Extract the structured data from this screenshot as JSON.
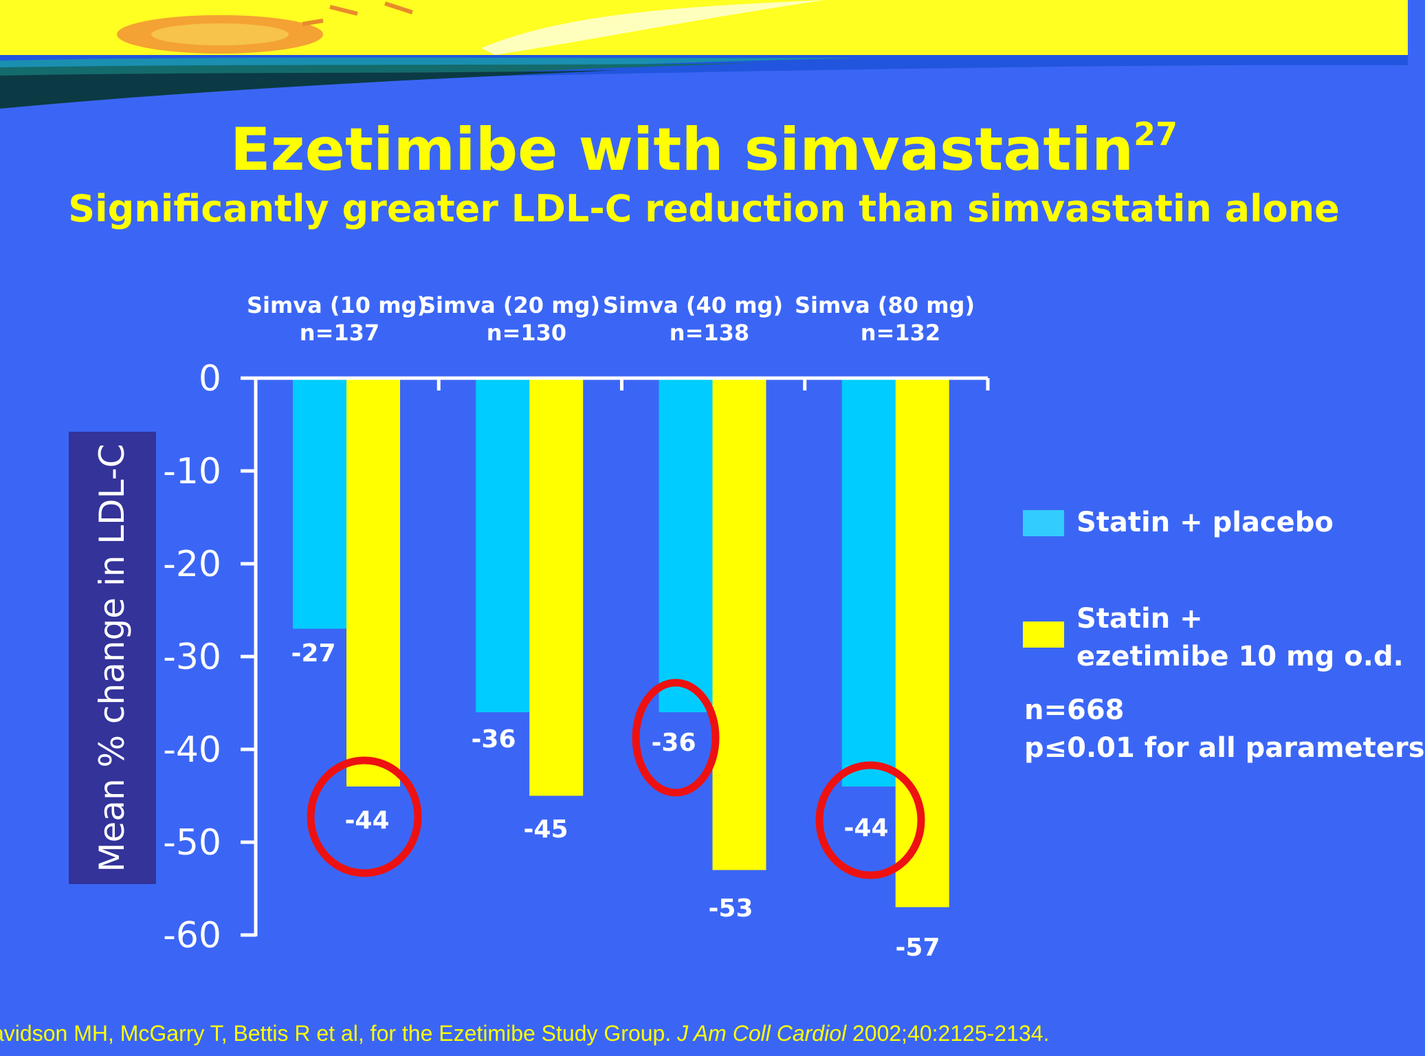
{
  "slide": {
    "title": "Ezetimibe with simvastatin",
    "title_superscript": "27",
    "subtitle": "Significantly greater LDL-C reduction than simvastatin alone",
    "citation_authors": "avidson MH, McGarry T, Bettis R et al, for the Ezetimibe Study Group.",
    "citation_journal": "J Am Coll Cardiol",
    "citation_details": "2002;40:2125-2134.",
    "note_n": "n=668",
    "note_p": "p≤0.01 for all parameters",
    "colors": {
      "background": "#3b66f5",
      "title": "#ffff00",
      "placebo": "#00ccff",
      "ezetimibe": "#ffff00",
      "highlight_circle": "#ee1111",
      "ylabel_box": "#333399"
    }
  },
  "chart_data": {
    "type": "bar",
    "categories": [
      "Simva (10 mg)",
      "Simva (20 mg)",
      "Simva (40 mg)",
      "Simva (80 mg)"
    ],
    "category_n": [
      "n=137",
      "n=130",
      "n=138",
      "n=132"
    ],
    "series": [
      {
        "name": "Statin + placebo",
        "values": [
          -27,
          -36,
          -36,
          -44
        ]
      },
      {
        "name": "Statin + ezetimibe 10 mg o.d.",
        "values": [
          -44,
          -45,
          -53,
          -57
        ]
      }
    ],
    "ylabel": "Mean % change in LDL-C",
    "ylim": [
      -60,
      0
    ],
    "yticks": [
      "0",
      "-10",
      "-20",
      "-30",
      "-40",
      "-50",
      "-60"
    ],
    "legend_position": "right",
    "legend_lines": [
      [
        "Statin + placebo"
      ],
      [
        "Statin +",
        "ezetimibe 10 mg o.d."
      ]
    ],
    "data_labels": [
      [
        "-27",
        "-36",
        "-36",
        "-44"
      ],
      [
        "-44",
        "-45",
        "-53",
        "-57"
      ]
    ],
    "highlighted_labels": [
      "-44",
      "-36",
      "-44"
    ]
  }
}
